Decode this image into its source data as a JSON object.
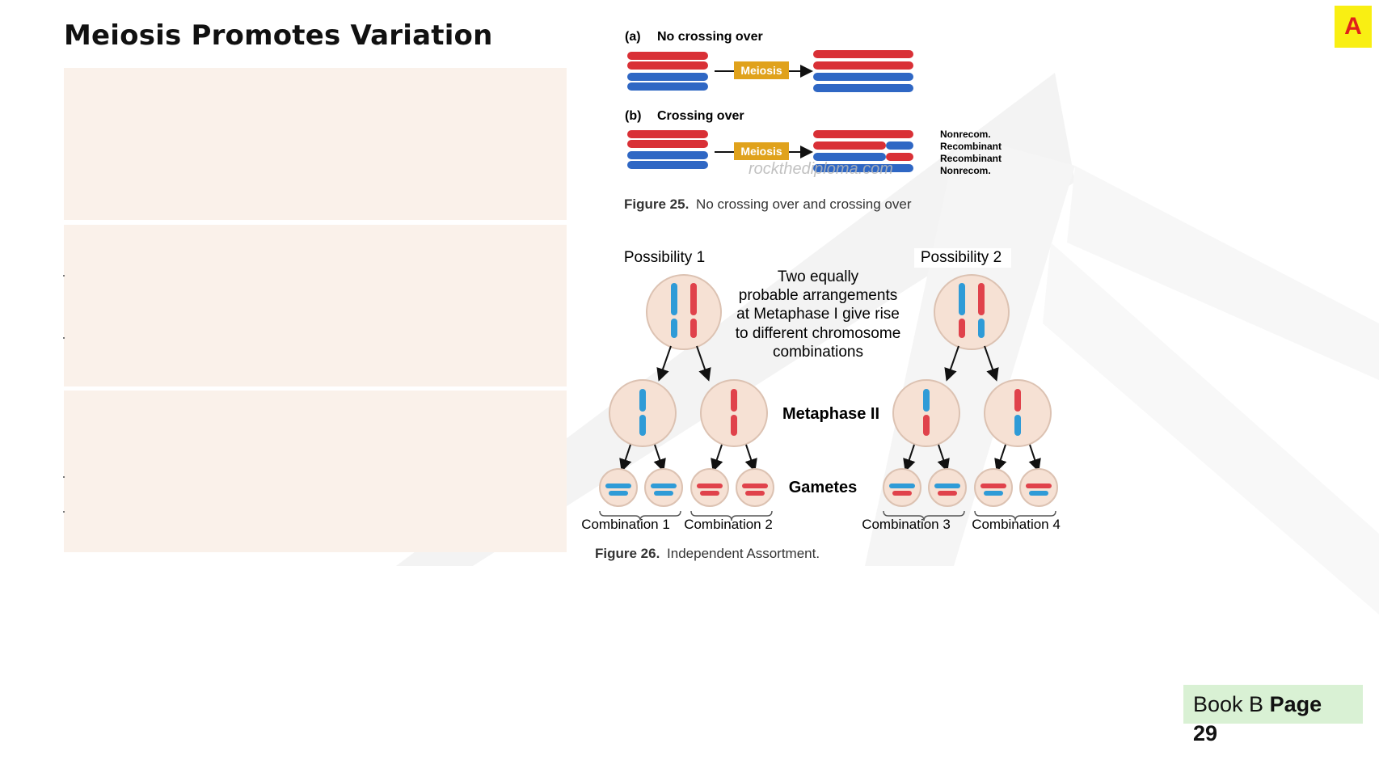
{
  "slide": {
    "title": "Meiosis Promotes Variation",
    "corner_badge": "A",
    "book_ref": {
      "book_label": "Book B",
      "page_label": "Page",
      "page_number": "29"
    }
  },
  "figure25": {
    "panel_a_label": "(a)",
    "panel_a_title": "No crossing over",
    "panel_b_label": "(b)",
    "panel_b_title": "Crossing over",
    "meiosis_label": "Meiosis",
    "outcome_labels": [
      "Nonrecom.",
      "Recombinant",
      "Recombinant",
      "Nonrecom."
    ],
    "watermark": "rockthediploma.com",
    "caption_number": "Figure 25.",
    "caption_text": "No crossing over and crossing over"
  },
  "figure26": {
    "possibility1": "Possibility 1",
    "possibility2": "Possibility 2",
    "center_note_lines": [
      "Two equally",
      "probable arrangements",
      "at Metaphase I give rise",
      "to different chromosome",
      "combinations"
    ],
    "metaphase2_label": "Metaphase II",
    "gametes_label": "Gametes",
    "combinations": [
      "Combination 1",
      "Combination 2",
      "Combination 3",
      "Combination 4"
    ],
    "caption_number": "Figure 26.",
    "caption_text": "Independent Assortment."
  },
  "colors": {
    "chrom_red": "#d93036",
    "chrom_blue": "#2f67c4",
    "meiosis_box": "#e0a21c",
    "cell_fill": "#f6e1d4",
    "panel_fill": "#faf1ea",
    "badge_yellow": "#f9ef13",
    "ref_green": "#d9f1d4"
  }
}
